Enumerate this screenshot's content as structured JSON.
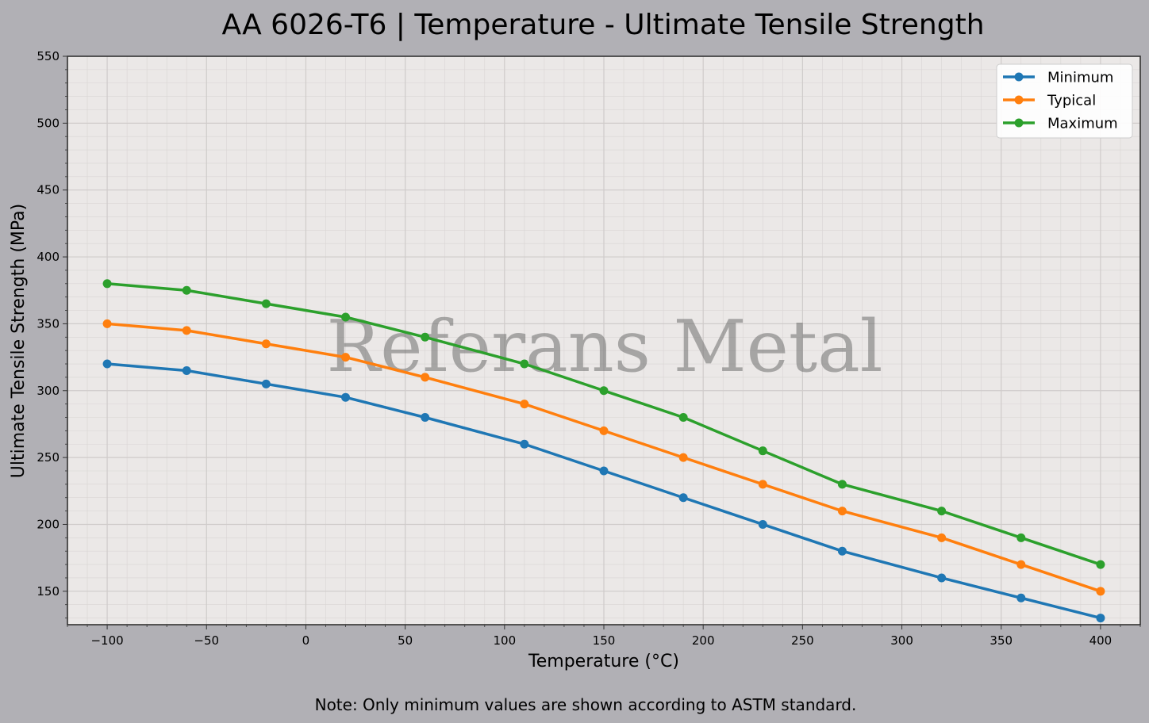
{
  "chart_data": {
    "type": "line",
    "title": "AA 6026-T6 | Temperature - Ultimate Tensile Strength",
    "xlabel": "Temperature (°C)",
    "ylabel": "Ultimate Tensile Strength (MPa)",
    "xlim": [
      -120,
      420
    ],
    "ylim": [
      125,
      550
    ],
    "xticks": [
      -100,
      -50,
      0,
      50,
      100,
      150,
      200,
      250,
      300,
      350,
      400
    ],
    "xtick_labels": [
      "−100",
      "−50",
      "0",
      "50",
      "100",
      "150",
      "200",
      "250",
      "300",
      "350",
      "400"
    ],
    "yticks": [
      150,
      200,
      250,
      300,
      350,
      400,
      450,
      500,
      550
    ],
    "yticks_labels": [
      "150",
      "200",
      "250",
      "300",
      "350",
      "400",
      "450",
      "500",
      "550"
    ],
    "grid": true,
    "legend_position": "top-right",
    "x": [
      -100,
      -60,
      -20,
      20,
      60,
      110,
      150,
      190,
      230,
      270,
      320,
      360,
      400
    ],
    "series": [
      {
        "name": "Minimum",
        "color": "#1f77b4",
        "values": [
          320,
          315,
          305,
          295,
          280,
          260,
          240,
          220,
          200,
          180,
          160,
          145,
          130
        ]
      },
      {
        "name": "Typical",
        "color": "#ff7f0e",
        "values": [
          350,
          345,
          335,
          325,
          310,
          290,
          270,
          250,
          230,
          210,
          190,
          170,
          150
        ]
      },
      {
        "name": "Maximum",
        "color": "#2ca02c",
        "values": [
          380,
          375,
          365,
          355,
          340,
          320,
          300,
          280,
          255,
          230,
          210,
          190,
          170
        ]
      }
    ],
    "watermark": "Referans Metal",
    "note": "Note: Only minimum values are shown according to ASTM standard."
  }
}
